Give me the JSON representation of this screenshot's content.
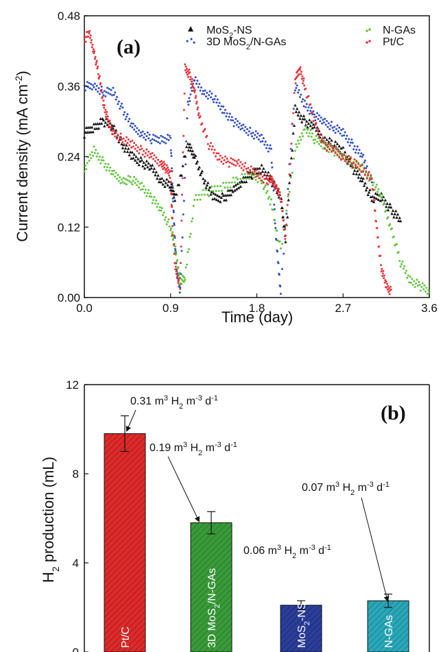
{
  "chart_data": [
    {
      "type": "scatter",
      "panel_label": "(a)",
      "xlabel": "Time (day)",
      "ylabel": "Current density (mA cm^-2)",
      "xlim": [
        0.0,
        3.6
      ],
      "ylim": [
        0.0,
        0.48
      ],
      "x_ticks": [
        "0.0",
        "0.9",
        "1.8",
        "2.7",
        "3.6"
      ],
      "y_ticks": [
        "0.00",
        "0.12",
        "0.24",
        "0.36",
        "0.48"
      ],
      "legend_placement": "top",
      "series": [
        {
          "name": "MoS2-NS",
          "color": "#111111",
          "marker": "triangle",
          "x": [
            0.0,
            0.1,
            0.2,
            0.3,
            0.4,
            0.5,
            0.6,
            0.7,
            0.8,
            0.9,
            0.95,
            1.08,
            1.15,
            1.25,
            1.35,
            1.45,
            1.55,
            1.65,
            1.75,
            1.85,
            1.95,
            2.05,
            2.1,
            2.2,
            2.3,
            2.4,
            2.5,
            2.6,
            2.7,
            2.8,
            2.9,
            3.0,
            3.1,
            3.2,
            3.3
          ],
          "y": [
            0.28,
            0.29,
            0.3,
            0.29,
            0.26,
            0.24,
            0.23,
            0.22,
            0.2,
            0.19,
            0.17,
            0.26,
            0.24,
            0.2,
            0.17,
            0.17,
            0.18,
            0.2,
            0.21,
            0.22,
            0.2,
            0.17,
            0.1,
            0.32,
            0.3,
            0.29,
            0.27,
            0.26,
            0.25,
            0.22,
            0.2,
            0.17,
            0.17,
            0.15,
            0.13
          ]
        },
        {
          "name": "3D MoS2/N-GAs",
          "color": "#2f4ec8",
          "marker": "dot",
          "x": [
            0.0,
            0.1,
            0.2,
            0.3,
            0.4,
            0.5,
            0.6,
            0.7,
            0.8,
            0.9,
            0.93,
            0.96,
            1.0,
            1.08,
            1.15,
            1.25,
            1.35,
            1.45,
            1.55,
            1.65,
            1.75,
            1.85,
            1.95,
            2.0,
            2.05,
            2.2,
            2.3,
            2.4,
            2.5,
            2.6,
            2.7,
            2.8,
            2.9,
            3.0
          ],
          "y": [
            0.36,
            0.36,
            0.35,
            0.35,
            0.32,
            0.29,
            0.28,
            0.27,
            0.27,
            0.27,
            0.15,
            0.05,
            0.01,
            0.33,
            0.37,
            0.35,
            0.34,
            0.32,
            0.3,
            0.29,
            0.28,
            0.27,
            0.25,
            0.1,
            0.01,
            0.36,
            0.33,
            0.31,
            0.3,
            0.29,
            0.28,
            0.26,
            0.24,
            0.2
          ]
        },
        {
          "name": "N-GAs",
          "color": "#5ec43a",
          "marker": "dot",
          "x": [
            0.0,
            0.1,
            0.2,
            0.3,
            0.4,
            0.5,
            0.6,
            0.7,
            0.8,
            0.9,
            0.95,
            1.0,
            1.05,
            1.15,
            1.3,
            1.45,
            1.6,
            1.75,
            1.85,
            1.95,
            2.05,
            2.2,
            2.3,
            2.4,
            2.5,
            2.6,
            2.7,
            2.8,
            2.9,
            3.0,
            3.1,
            3.2,
            3.3,
            3.4,
            3.5,
            3.6
          ],
          "y": [
            0.22,
            0.25,
            0.23,
            0.21,
            0.2,
            0.2,
            0.19,
            0.17,
            0.15,
            0.12,
            0.08,
            0.03,
            0.03,
            0.17,
            0.18,
            0.19,
            0.2,
            0.21,
            0.2,
            0.16,
            0.08,
            0.25,
            0.29,
            0.27,
            0.26,
            0.25,
            0.24,
            0.23,
            0.22,
            0.2,
            0.17,
            0.12,
            0.06,
            0.03,
            0.02,
            0.01
          ]
        },
        {
          "name": "Pt/C",
          "color": "#e8333a",
          "marker": "dot",
          "x": [
            0.0,
            0.05,
            0.1,
            0.15,
            0.2,
            0.25,
            0.3,
            0.4,
            0.5,
            0.6,
            0.7,
            0.8,
            0.85,
            0.9,
            0.92,
            0.95,
            1.0,
            1.05,
            1.1,
            1.15,
            1.2,
            1.3,
            1.4,
            1.5,
            1.6,
            1.7,
            1.8,
            1.9,
            1.95,
            2.0,
            2.05,
            2.1,
            2.2,
            2.25,
            2.3,
            2.4,
            2.5,
            2.6,
            2.7,
            2.8,
            2.9,
            3.0,
            3.05,
            3.1,
            3.15,
            3.2
          ],
          "y": [
            0.44,
            0.45,
            0.42,
            0.38,
            0.33,
            0.3,
            0.28,
            0.27,
            0.26,
            0.25,
            0.24,
            0.23,
            0.22,
            0.21,
            0.12,
            0.05,
            0.02,
            0.39,
            0.38,
            0.35,
            0.31,
            0.26,
            0.24,
            0.23,
            0.23,
            0.22,
            0.21,
            0.2,
            0.2,
            0.19,
            0.17,
            0.1,
            0.37,
            0.39,
            0.36,
            0.3,
            0.26,
            0.25,
            0.24,
            0.23,
            0.22,
            0.2,
            0.12,
            0.05,
            0.02,
            0.01
          ]
        }
      ]
    },
    {
      "type": "bar",
      "panel_label": "(b)",
      "ylabel": "H2 production (mL)",
      "ylim": [
        0,
        12
      ],
      "y_ticks": [
        "0",
        "4",
        "8",
        "12"
      ],
      "categories": [
        "Pt/C",
        "3D MoS2/N-GAs",
        "MoS2-NS",
        "N-GAs"
      ],
      "values": [
        9.8,
        5.8,
        2.1,
        2.3
      ],
      "errors": [
        0.8,
        0.5,
        0.2,
        0.3
      ],
      "colors": [
        "#dd2a2a",
        "#3a9a3a",
        "#2b3e9a",
        "#2aa7b8"
      ],
      "annotations": [
        "0.31 m3 H2 m-3 d-1",
        "0.19 m3 H2 m-3 d-1",
        "0.06 m3 H2 m-3 d-1",
        "0.07 m3 H2 m-3 d-1"
      ]
    }
  ]
}
